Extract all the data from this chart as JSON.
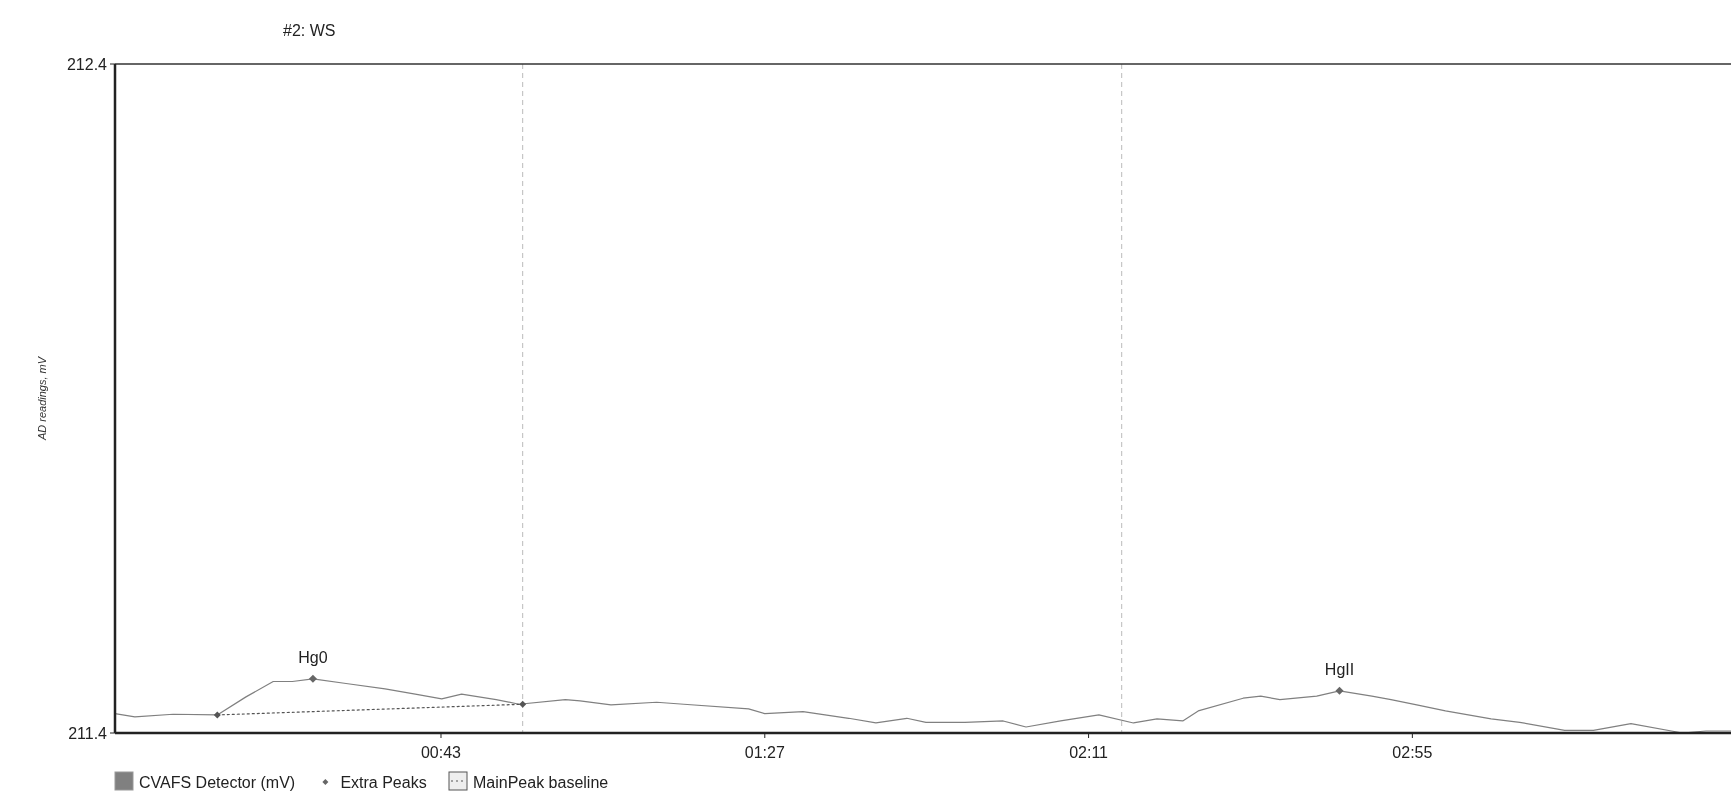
{
  "chart_data": {
    "type": "line",
    "title": "#2: WS",
    "ylabel": "AD readings, mV",
    "xlim": [
      -1.3,
      218.3
    ],
    "xticks": [
      {
        "value": 43,
        "label": "00:43"
      },
      {
        "value": 87,
        "label": "01:27"
      },
      {
        "value": 131,
        "label": "02:11"
      },
      {
        "value": 175,
        "label": "02:55"
      }
    ],
    "ylim": [
      211.4,
      212.4
    ],
    "yticks": [
      211.4,
      212.4
    ],
    "grid": false,
    "legend": "bottom",
    "ref_lines": [
      {
        "axis": "x",
        "value": 54.1,
        "color": "#bbbbbb",
        "line_style": "dashed"
      },
      {
        "axis": "x",
        "value": 135.5,
        "color": "#bbbbbb",
        "line_style": "dashed"
      }
    ],
    "annotations": [
      {
        "text": "Hg0",
        "x": 25.6,
        "y": 211.481
      },
      {
        "text": "HgII",
        "x": 165.1,
        "y": 211.463
      }
    ],
    "series": [
      {
        "name": "CVAFS Detector (mV)",
        "color": "#808080",
        "marker": "none",
        "line_style": "solid",
        "x": [
          -1.3,
          1.4,
          6.6,
          12.6,
          16.5,
          20.2,
          22.8,
          25.6,
          30.1,
          35.4,
          39.5,
          43.1,
          45.8,
          50.5,
          53.6,
          59.9,
          61.9,
          66.1,
          72.3,
          76.0,
          84.8,
          87.0,
          92.2,
          98.4,
          102.1,
          106.3,
          108.9,
          114.2,
          119.4,
          122.5,
          127.2,
          132.4,
          137.1,
          140.3,
          143.8,
          145.9,
          152.0,
          154.4,
          157.0,
          162.0,
          165.1,
          169.5,
          172.1,
          175.6,
          179.5,
          185.7,
          189.6,
          195.7,
          199.6,
          204.7,
          211.7,
          214.9,
          218.3
        ],
        "values": [
          211.429,
          211.424,
          211.428,
          211.427,
          211.454,
          211.477,
          211.477,
          211.481,
          211.474,
          211.466,
          211.458,
          211.451,
          211.458,
          211.45,
          211.443,
          211.45,
          211.448,
          211.442,
          211.446,
          211.443,
          211.436,
          211.429,
          211.432,
          211.422,
          211.415,
          211.422,
          211.416,
          211.416,
          211.418,
          211.409,
          211.418,
          211.427,
          211.415,
          211.421,
          211.418,
          211.433,
          211.452,
          211.455,
          211.45,
          211.455,
          211.463,
          211.455,
          211.45,
          211.442,
          211.433,
          211.421,
          211.416,
          211.404,
          211.404,
          211.414,
          211.4,
          211.403,
          211.403
        ]
      },
      {
        "name": "Extra Peaks",
        "type": "scatter",
        "color": "#666666",
        "marker": "diamond",
        "x": [
          25.6,
          165.1
        ],
        "values": [
          211.481,
          211.463
        ]
      },
      {
        "name": "MainPeak baseline",
        "color": "#555555",
        "marker": "diamond",
        "line_style": "dotted",
        "x": [
          12.6,
          54.1
        ],
        "values": [
          211.427,
          211.443
        ]
      }
    ]
  }
}
